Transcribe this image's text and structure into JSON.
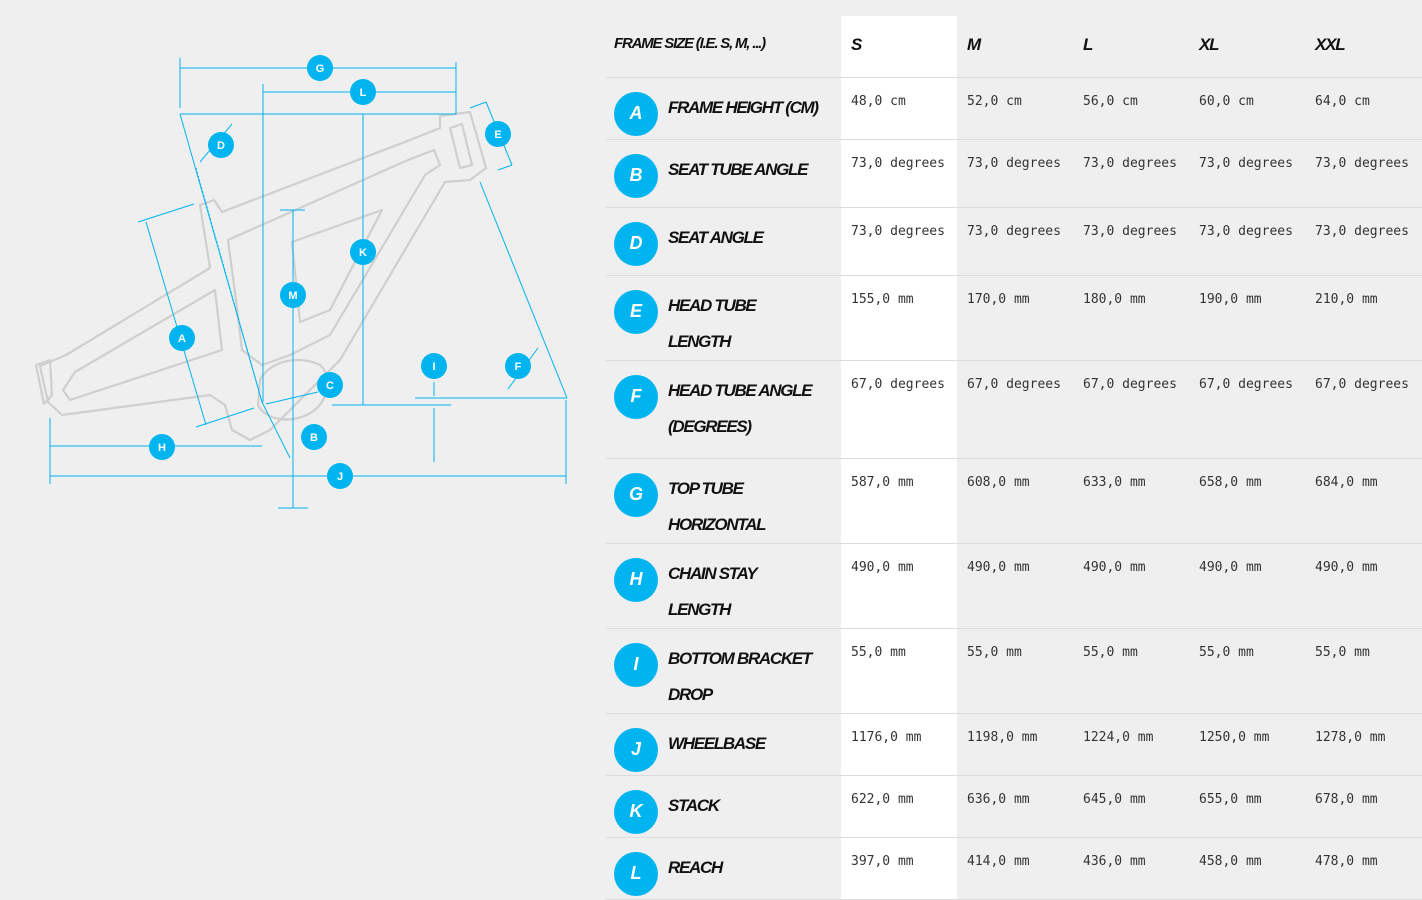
{
  "diagram": {
    "labels": [
      "A",
      "B",
      "C",
      "D",
      "E",
      "F",
      "G",
      "H",
      "I",
      "J",
      "K",
      "L",
      "M"
    ],
    "accent": "#00b4ef",
    "frame_color": "#cfcfcf"
  },
  "table": {
    "header_label": "FRAME SIZE (I.E. S, M, ...)",
    "sizes": [
      "S",
      "M",
      "L",
      "XL",
      "XXL"
    ],
    "rows": [
      {
        "letter": "A",
        "name": "FRAME HEIGHT (CM)",
        "values": [
          "48,0 cm",
          "52,0 cm",
          "56,0 cm",
          "60,0 cm",
          "64,0 cm"
        ]
      },
      {
        "letter": "B",
        "name": "SEAT TUBE ANGLE",
        "values": [
          "73,0 degrees",
          "73,0 degrees",
          "73,0 degrees",
          "73,0 degrees",
          "73,0 degrees"
        ]
      },
      {
        "letter": "D",
        "name": "SEAT ANGLE",
        "values": [
          "73,0 degrees",
          "73,0 degrees",
          "73,0 degrees",
          "73,0 degrees",
          "73,0 degrees"
        ]
      },
      {
        "letter": "E",
        "name": "HEAD TUBE LENGTH",
        "values": [
          "155,0 mm",
          "170,0 mm",
          "180,0 mm",
          "190,0 mm",
          "210,0 mm"
        ]
      },
      {
        "letter": "F",
        "name": "HEAD TUBE ANGLE (DEGREES)",
        "values": [
          "67,0 degrees",
          "67,0 degrees",
          "67,0 degrees",
          "67,0 degrees",
          "67,0 degrees"
        ]
      },
      {
        "letter": "G",
        "name": "TOP TUBE HORIZONTAL",
        "values": [
          "587,0 mm",
          "608,0 mm",
          "633,0 mm",
          "658,0 mm",
          "684,0 mm"
        ]
      },
      {
        "letter": "H",
        "name": "CHAIN STAY LENGTH",
        "values": [
          "490,0 mm",
          "490,0 mm",
          "490,0 mm",
          "490,0 mm",
          "490,0 mm"
        ]
      },
      {
        "letter": "I",
        "name": "BOTTOM BRACKET DROP",
        "values": [
          "55,0 mm",
          "55,0 mm",
          "55,0 mm",
          "55,0 mm",
          "55,0 mm"
        ]
      },
      {
        "letter": "J",
        "name": "WHEELBASE",
        "values": [
          "1176,0 mm",
          "1198,0 mm",
          "1224,0 mm",
          "1250,0 mm",
          "1278,0 mm"
        ]
      },
      {
        "letter": "K",
        "name": "STACK",
        "values": [
          "622,0 mm",
          "636,0 mm",
          "645,0 mm",
          "655,0 mm",
          "678,0 mm"
        ]
      },
      {
        "letter": "L",
        "name": "REACH",
        "values": [
          "397,0 mm",
          "414,0 mm",
          "436,0 mm",
          "458,0 mm",
          "478,0 mm"
        ]
      }
    ]
  }
}
